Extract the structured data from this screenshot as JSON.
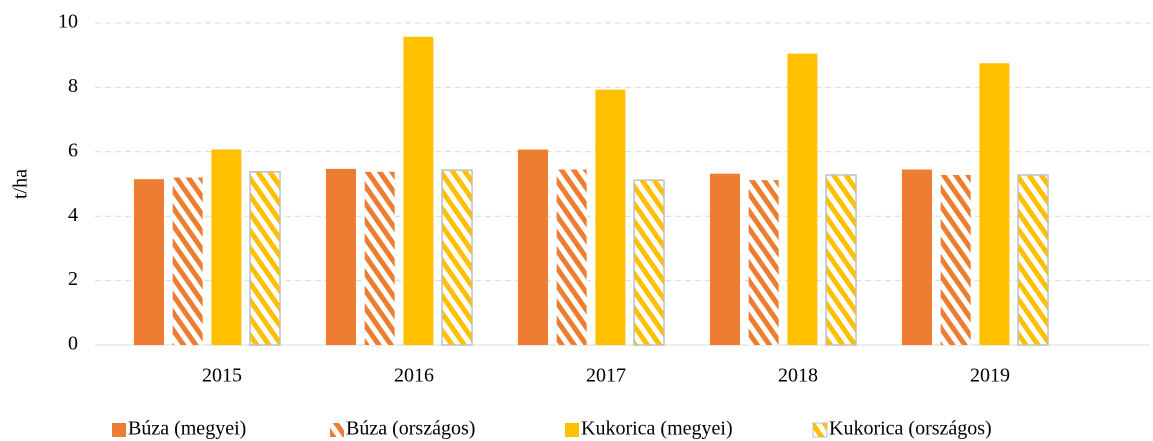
{
  "chart_data": {
    "type": "bar",
    "ylabel": "t/ha",
    "categories": [
      "2015",
      "2016",
      "2017",
      "2018",
      "2019"
    ],
    "series": [
      {
        "name": "Búza (megyei)",
        "color": "#ed7d31",
        "pattern": "solid",
        "values": [
          5.15,
          5.47,
          6.07,
          5.32,
          5.45
        ]
      },
      {
        "name": "Búza (országos)",
        "color": "#ed7d31",
        "pattern": "hatch",
        "values": [
          5.2,
          5.38,
          5.45,
          5.12,
          5.28
        ]
      },
      {
        "name": "Kukorica (megyei)",
        "color": "#ffc000",
        "pattern": "solid",
        "values": [
          6.07,
          9.57,
          7.93,
          9.05,
          8.75
        ]
      },
      {
        "name": "Kukorica (országos)",
        "color": "#ffc000",
        "pattern": "hatch",
        "values": [
          5.38,
          5.43,
          5.12,
          5.28,
          5.28
        ]
      }
    ],
    "ylim": [
      0,
      10
    ],
    "yticks": [
      0,
      2,
      4,
      6,
      8,
      10
    ],
    "grid": true,
    "legend": "bottom"
  }
}
